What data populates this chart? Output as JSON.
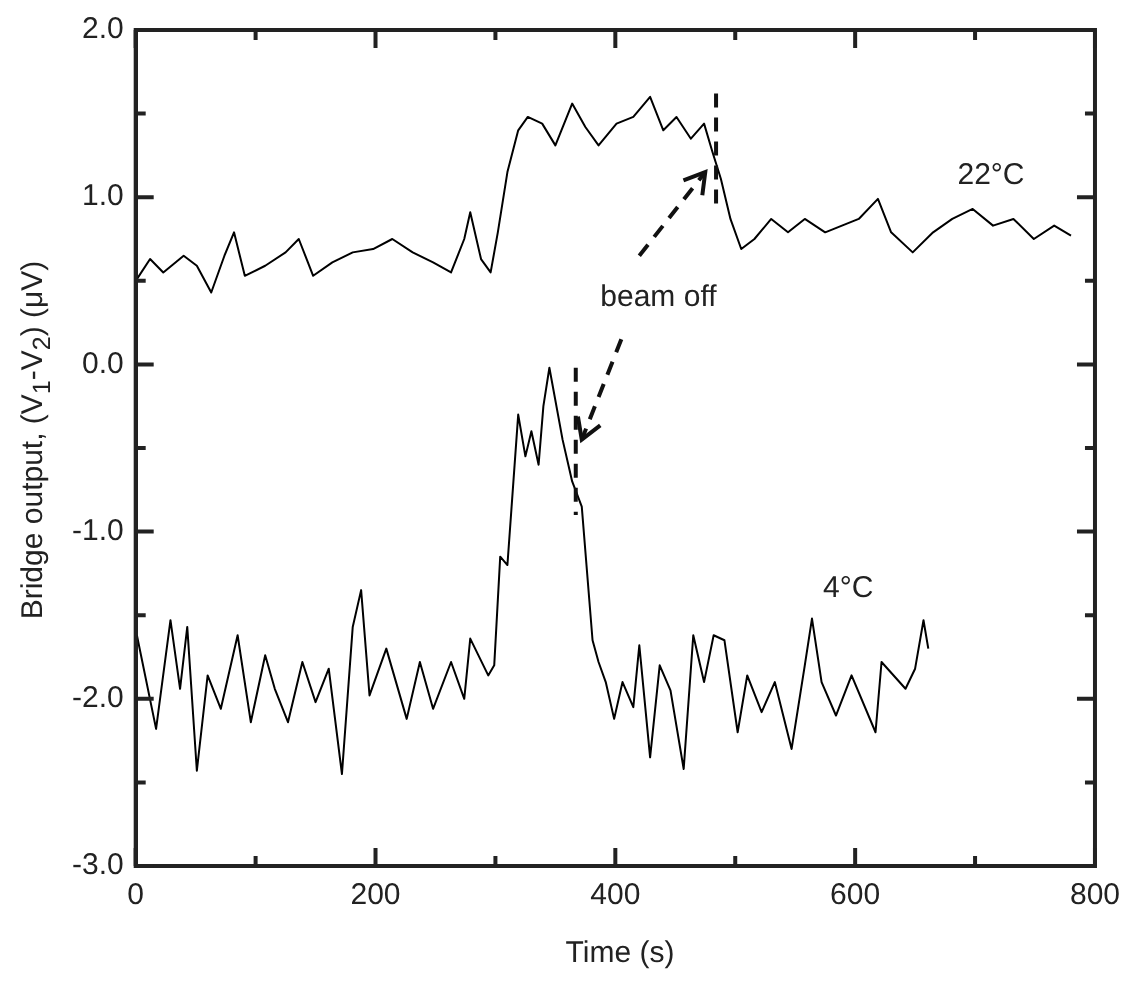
{
  "chart_data": {
    "type": "line",
    "xlabel": "Time (s)",
    "ylabel": "Bridge output, (V$_{1}$-V$_{2}$) (μV)",
    "xlim": [
      0,
      800
    ],
    "xticks": [
      0,
      {
        "value": 100,
        "label": null
      },
      200,
      {
        "value": 300,
        "label": null
      },
      400,
      {
        "value": 500,
        "label": null
      },
      600,
      {
        "value": 700,
        "label": null
      },
      800
    ],
    "ylim": [
      -3,
      2
    ],
    "yticks": [
      {
        "value": -3,
        "label": "-3.0"
      },
      {
        "value": -2.5,
        "label": null
      },
      {
        "value": -2,
        "label": "-2.0"
      },
      {
        "value": -1.5,
        "label": null
      },
      {
        "value": -1,
        "label": "-1.0"
      },
      {
        "value": -0.5,
        "label": null
      },
      {
        "value": 0,
        "label": "0.0"
      },
      {
        "value": 0.5,
        "label": null
      },
      {
        "value": 1,
        "label": "1.0"
      },
      {
        "value": 1.5,
        "label": null
      },
      {
        "value": 2,
        "label": "2.0"
      }
    ],
    "grid": false,
    "legend": false,
    "marker": "none",
    "line_style": "solid",
    "annotations": [
      "beam off"
    ],
    "series": [
      {
        "name": "22°C",
        "color": "#000000",
        "x": [
          1,
          12,
          23,
          40,
          51,
          63,
          74,
          82,
          91,
          108,
          125,
          136,
          148,
          164,
          181,
          198,
          214,
          231,
          248,
          263,
          274,
          279,
          288,
          296,
          302,
          310,
          319,
          327,
          339,
          350,
          364,
          375,
          386,
          401,
          415,
          429,
          440,
          451,
          463,
          474,
          481,
          488,
          496,
          505,
          516,
          530,
          544,
          558,
          575,
          603,
          619,
          630,
          648,
          665,
          681,
          698,
          715,
          732,
          749,
          766,
          780
        ],
        "values": [
          0.51,
          0.63,
          0.55,
          0.65,
          0.59,
          0.43,
          0.65,
          0.79,
          0.53,
          0.59,
          0.67,
          0.75,
          0.53,
          0.61,
          0.67,
          0.69,
          0.75,
          0.67,
          0.61,
          0.55,
          0.75,
          0.91,
          0.63,
          0.55,
          0.79,
          1.15,
          1.4,
          1.48,
          1.44,
          1.31,
          1.56,
          1.42,
          1.31,
          1.44,
          1.48,
          1.6,
          1.4,
          1.48,
          1.35,
          1.44,
          1.27,
          1.11,
          0.87,
          0.69,
          0.75,
          0.87,
          0.79,
          0.87,
          0.79,
          0.87,
          0.99,
          0.79,
          0.67,
          0.79,
          0.87,
          0.93,
          0.83,
          0.87,
          0.75,
          0.83,
          0.77
        ]
      },
      {
        "name": "4°C",
        "color": "#000000",
        "x": [
          1,
          17,
          29,
          37,
          43,
          51,
          60,
          71,
          85,
          96,
          108,
          116,
          127,
          139,
          150,
          161,
          172,
          181,
          188,
          195,
          209,
          226,
          237,
          248,
          263,
          274,
          279,
          294,
          299,
          304,
          310,
          319,
          325,
          330,
          336,
          340,
          345,
          356,
          364,
          372,
          381,
          386,
          392,
          399,
          406,
          415,
          420,
          429,
          437,
          446,
          457,
          465,
          474,
          482,
          491,
          502,
          510,
          522,
          533,
          547,
          558,
          564,
          572,
          584,
          597,
          617,
          622,
          642,
          650,
          657,
          661
        ],
        "values": [
          -1.62,
          -2.18,
          -1.53,
          -1.94,
          -1.57,
          -2.43,
          -1.86,
          -2.06,
          -1.62,
          -2.14,
          -1.74,
          -1.94,
          -2.14,
          -1.78,
          -2.02,
          -1.82,
          -2.45,
          -1.57,
          -1.35,
          -1.98,
          -1.7,
          -2.12,
          -1.78,
          -2.06,
          -1.78,
          -2,
          -1.64,
          -1.86,
          -1.8,
          -1.15,
          -1.2,
          -0.3,
          -0.55,
          -0.4,
          -0.6,
          -0.25,
          -0.02,
          -0.45,
          -0.7,
          -0.85,
          -1.65,
          -1.78,
          -1.9,
          -2.12,
          -1.9,
          -2.05,
          -1.68,
          -2.35,
          -1.8,
          -1.95,
          -2.42,
          -1.62,
          -1.9,
          -1.62,
          -1.65,
          -2.2,
          -1.86,
          -2.08,
          -1.9,
          -2.3,
          -1.8,
          -1.52,
          -1.9,
          -2.1,
          -1.86,
          -2.2,
          -1.78,
          -1.94,
          -1.82,
          -1.53,
          -1.7
        ]
      }
    ]
  }
}
